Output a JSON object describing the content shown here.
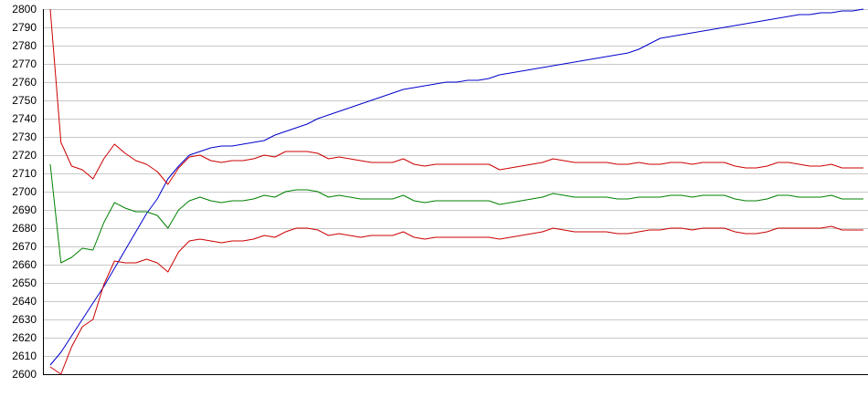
{
  "chart_data": {
    "type": "line",
    "title": "",
    "xlabel": "",
    "ylabel": "",
    "ylim": [
      2600,
      2800
    ],
    "yticks": [
      2600,
      2610,
      2620,
      2630,
      2640,
      2650,
      2660,
      2670,
      2680,
      2690,
      2700,
      2710,
      2720,
      2730,
      2740,
      2750,
      2760,
      2770,
      2780,
      2790,
      2800
    ],
    "grid": true,
    "legend": "none",
    "x": [
      0,
      1,
      2,
      3,
      4,
      5,
      6,
      7,
      8,
      9,
      10,
      11,
      12,
      13,
      14,
      15,
      16,
      17,
      18,
      19,
      20,
      21,
      22,
      23,
      24,
      25,
      26,
      27,
      28,
      29,
      30,
      31,
      32,
      33,
      34,
      35,
      36,
      37,
      38,
      39,
      40,
      41,
      42,
      43,
      44,
      45,
      46,
      47,
      48,
      49,
      50,
      51,
      52,
      53,
      54,
      55,
      56,
      57,
      58,
      59,
      60,
      61,
      62,
      63,
      64,
      65,
      66,
      67,
      68,
      69,
      70,
      71,
      72,
      73,
      74,
      75,
      76
    ],
    "series": [
      {
        "color": "#0000cc",
        "values": [
          2605,
          2612,
          2621,
          2630,
          2639,
          2648,
          2658,
          2668,
          2678,
          2688,
          2696,
          2707,
          2714,
          2720,
          2722,
          2724,
          2725,
          2725,
          2726,
          2727,
          2728,
          2731,
          2733,
          2735,
          2737,
          2740,
          2742,
          2744,
          2746,
          2748,
          2750,
          2752,
          2754,
          2756,
          2757,
          2758,
          2759,
          2760,
          2760,
          2761,
          2761,
          2762,
          2764,
          2765,
          2766,
          2767,
          2768,
          2769,
          2770,
          2771,
          2772,
          2773,
          2774,
          2775,
          2776,
          2778,
          2781,
          2784,
          2785,
          2786,
          2787,
          2788,
          2789,
          2790,
          2791,
          2792,
          2793,
          2794,
          2795,
          2796,
          2797,
          2797,
          2798,
          2798,
          2799,
          2799,
          2800
        ]
      },
      {
        "color": "#cc0000",
        "values": [
          2800,
          2727,
          2714,
          2712,
          2707,
          2718,
          2726,
          2721,
          2717,
          2715,
          2711,
          2704,
          2713,
          2719,
          2720,
          2717,
          2716,
          2717,
          2717,
          2718,
          2720,
          2719,
          2722,
          2722,
          2722,
          2721,
          2718,
          2719,
          2718,
          2717,
          2716,
          2716,
          2716,
          2718,
          2715,
          2714,
          2715,
          2715,
          2715,
          2715,
          2715,
          2715,
          2712,
          2713,
          2714,
          2715,
          2716,
          2718,
          2717,
          2716,
          2716,
          2716,
          2716,
          2715,
          2715,
          2716,
          2715,
          2715,
          2716,
          2716,
          2715,
          2716,
          2716,
          2716,
          2714,
          2713,
          2713,
          2714,
          2716,
          2716,
          2715,
          2714,
          2714,
          2715,
          2713,
          2713,
          2713
        ]
      },
      {
        "color": "#008000",
        "values": [
          2715,
          2661,
          2664,
          2669,
          2668,
          2683,
          2694,
          2691,
          2689,
          2689,
          2687,
          2680,
          2690,
          2695,
          2697,
          2695,
          2694,
          2695,
          2695,
          2696,
          2698,
          2697,
          2700,
          2701,
          2701,
          2700,
          2697,
          2698,
          2697,
          2696,
          2696,
          2696,
          2696,
          2698,
          2695,
          2694,
          2695,
          2695,
          2695,
          2695,
          2695,
          2695,
          2693,
          2694,
          2695,
          2696,
          2697,
          2699,
          2698,
          2697,
          2697,
          2697,
          2697,
          2696,
          2696,
          2697,
          2697,
          2697,
          2698,
          2698,
          2697,
          2698,
          2698,
          2698,
          2696,
          2695,
          2695,
          2696,
          2698,
          2698,
          2697,
          2697,
          2697,
          2698,
          2696,
          2696,
          2696
        ]
      },
      {
        "color": "#cc0000",
        "values": [
          2604,
          2600,
          2615,
          2626,
          2630,
          2649,
          2662,
          2661,
          2661,
          2663,
          2661,
          2656,
          2667,
          2673,
          2674,
          2673,
          2672,
          2673,
          2673,
          2674,
          2676,
          2675,
          2678,
          2680,
          2680,
          2679,
          2676,
          2677,
          2676,
          2675,
          2676,
          2676,
          2676,
          2678,
          2675,
          2674,
          2675,
          2675,
          2675,
          2675,
          2675,
          2675,
          2674,
          2675,
          2676,
          2677,
          2678,
          2680,
          2679,
          2678,
          2678,
          2678,
          2678,
          2677,
          2677,
          2678,
          2679,
          2679,
          2680,
          2680,
          2679,
          2680,
          2680,
          2680,
          2678,
          2677,
          2677,
          2678,
          2680,
          2680,
          2680,
          2680,
          2680,
          2681,
          2679,
          2679,
          2679
        ]
      }
    ]
  }
}
